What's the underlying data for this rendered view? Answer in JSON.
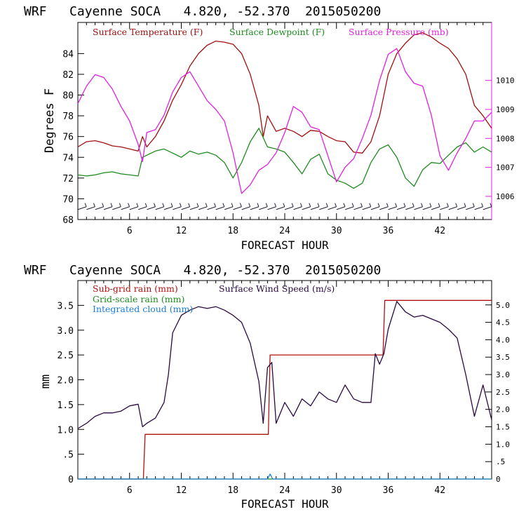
{
  "colors": {
    "temperature": "#a0100f",
    "dewpoint": "#1e8b1e",
    "pressure": "#e020e0",
    "subgrid_rain": "#b01010",
    "gridscale_rain": "#1e8b1e",
    "cloud": "#1a7fd0",
    "wind": "#2a0a40",
    "axis": "#000000"
  },
  "chart_data": [
    {
      "type": "line",
      "title": "WRF   Cayenne SOCA   4.820, -52.370  2015050200",
      "xlabel": "FORECAST HOUR",
      "ylabel": "Degrees F",
      "xlim": [
        0,
        48
      ],
      "xticks": [
        6,
        12,
        18,
        24,
        30,
        36,
        42
      ],
      "ylim": [
        68,
        87
      ],
      "yticks": [
        68,
        70,
        72,
        74,
        76,
        78,
        80,
        82,
        84
      ],
      "y2lim": [
        1005.2,
        1012.0
      ],
      "y2ticks": [
        1006,
        1007,
        1008,
        1009,
        1010
      ],
      "legend": [
        "Surface Temperature (F)",
        "Surface Dewpoint (F)",
        "Surface Pressure (mb)"
      ],
      "series": [
        {
          "name": "Surface Temperature (F)",
          "axis": "left",
          "x": [
            0,
            1,
            2,
            3,
            4,
            5,
            6,
            7,
            7.5,
            8,
            9,
            10,
            11,
            12,
            13,
            14,
            15,
            16,
            17,
            18,
            19,
            20,
            21,
            21.5,
            22,
            23,
            24,
            25,
            26,
            27,
            28,
            29,
            30,
            31,
            32,
            33,
            34,
            35,
            35.5,
            36,
            37,
            38,
            39,
            40,
            41,
            42,
            43,
            44,
            45,
            46,
            47,
            48
          ],
          "values": [
            75.0,
            75.5,
            75.6,
            75.4,
            75.1,
            75.0,
            74.8,
            74.6,
            76.0,
            75.0,
            76.0,
            77.5,
            79.5,
            81.0,
            82.8,
            84.0,
            84.8,
            85.2,
            85.1,
            84.9,
            84.0,
            82.0,
            79.0,
            76.0,
            78.0,
            76.5,
            76.8,
            76.5,
            76.0,
            76.6,
            76.5,
            76.0,
            75.6,
            75.5,
            74.5,
            74.4,
            75.5,
            78.0,
            80.0,
            82.0,
            84.0,
            85.0,
            85.8,
            86.0,
            85.6,
            85.0,
            84.5,
            83.5,
            82.0,
            79.0,
            78.0,
            76.8
          ]
        },
        {
          "name": "Surface Dewpoint (F)",
          "axis": "left",
          "x": [
            0,
            1,
            2,
            3,
            4,
            5,
            6,
            7,
            7.5,
            8,
            9,
            10,
            11,
            12,
            13,
            14,
            15,
            16,
            17,
            18,
            19,
            20,
            21,
            22,
            23,
            24,
            25,
            26,
            27,
            28,
            29,
            30,
            31,
            32,
            33,
            34,
            35,
            36,
            37,
            38,
            39,
            40,
            41,
            42,
            43,
            44,
            45,
            46,
            47,
            48
          ],
          "values": [
            72.3,
            72.2,
            72.3,
            72.5,
            72.6,
            72.4,
            72.3,
            72.2,
            74.0,
            74.2,
            74.6,
            74.8,
            74.4,
            74.0,
            74.6,
            74.3,
            74.5,
            74.2,
            73.5,
            72.0,
            73.5,
            75.5,
            76.8,
            75.0,
            74.8,
            74.5,
            73.5,
            72.4,
            73.8,
            74.3,
            72.4,
            71.8,
            71.5,
            71.0,
            71.5,
            73.5,
            74.8,
            75.2,
            74.0,
            72.0,
            71.2,
            72.8,
            73.5,
            73.4,
            74.2,
            75.0,
            75.4,
            74.5,
            75.0,
            74.5
          ]
        },
        {
          "name": "Surface Pressure (mb)",
          "axis": "right",
          "x": [
            0,
            1,
            2,
            3,
            4,
            5,
            6,
            7,
            7.5,
            8,
            9,
            10,
            11,
            12,
            13,
            14,
            15,
            16,
            17,
            18,
            19,
            20,
            21,
            22,
            23,
            24,
            25,
            26,
            27,
            28,
            29,
            30,
            31,
            32,
            33,
            34,
            35,
            36,
            37,
            38,
            39,
            40,
            41,
            42,
            43,
            44,
            45,
            46,
            47,
            48
          ],
          "values": [
            1009.2,
            1009.8,
            1010.2,
            1010.1,
            1009.7,
            1009.1,
            1008.6,
            1007.8,
            1007.2,
            1008.2,
            1008.3,
            1008.8,
            1009.6,
            1010.1,
            1010.3,
            1009.8,
            1009.3,
            1009.0,
            1008.6,
            1007.5,
            1006.1,
            1006.4,
            1006.9,
            1007.1,
            1007.5,
            1008.2,
            1009.1,
            1008.9,
            1008.4,
            1008.3,
            1007.4,
            1006.5,
            1007.0,
            1007.3,
            1008.0,
            1008.8,
            1010.0,
            1010.9,
            1011.1,
            1010.3,
            1009.9,
            1009.8,
            1008.8,
            1007.4,
            1006.9,
            1007.5,
            1008.0,
            1008.6,
            1008.6,
            1008.9
          ]
        }
      ]
    },
    {
      "type": "line",
      "title": "WRF   Cayenne SOCA   4.820, -52.370  2015050200",
      "xlabel": "FORECAST HOUR",
      "ylabel": "mm",
      "xlim": [
        0,
        48
      ],
      "xticks": [
        6,
        12,
        18,
        24,
        30,
        36,
        42
      ],
      "ylim": [
        0,
        4.0
      ],
      "yticks": [
        0,
        0.5,
        1.0,
        1.5,
        2.0,
        2.5,
        3.0,
        3.5
      ],
      "yticklabels": [
        "0",
        ".5",
        "1.0",
        "1.5",
        "2.0",
        "2.5",
        "3.0",
        "3.5"
      ],
      "y2lim": [
        0,
        5.7
      ],
      "y2ticks": [
        0,
        0.5,
        1.0,
        1.5,
        2.0,
        2.5,
        3.0,
        3.5,
        4.0,
        4.5,
        5.0
      ],
      "y2ticklabels": [
        "0",
        ".5",
        "1.0",
        "1.5",
        "2.0",
        "2.5",
        "3.0",
        "3.5",
        "4.0",
        "4.5",
        "5.0"
      ],
      "legend": [
        "Sub-grid rain (mm)",
        "Grid-scale rain (mm)",
        "Integrated cloud (mm)",
        "Surface Wind Speed (m/s)"
      ],
      "series": [
        {
          "name": "Sub-grid rain (mm)",
          "axis": "left",
          "step": true,
          "x": [
            0,
            7.6,
            7.8,
            22.1,
            22.3,
            35.4,
            35.6,
            48
          ],
          "values": [
            0,
            0,
            0.9,
            0.9,
            2.5,
            2.5,
            3.6,
            3.6
          ]
        },
        {
          "name": "Grid-scale rain (mm)",
          "axis": "left",
          "x": [
            0,
            48
          ],
          "values": [
            0,
            0
          ]
        },
        {
          "name": "Integrated cloud (mm)",
          "axis": "left",
          "x": [
            0,
            22.0,
            22.3,
            22.6,
            48
          ],
          "values": [
            0,
            0,
            0.1,
            0,
            0
          ]
        },
        {
          "name": "Surface Wind Speed (m/s)",
          "axis": "right",
          "x": [
            0,
            1,
            2,
            3,
            4,
            5,
            6,
            7,
            7.5,
            8,
            9,
            10,
            10.5,
            11,
            12,
            13,
            14,
            15,
            16,
            17,
            18,
            19,
            20,
            21,
            21.5,
            22,
            22.5,
            23,
            24,
            25,
            26,
            27,
            28,
            29,
            30,
            31,
            32,
            33,
            34,
            34.5,
            35,
            35.5,
            36,
            37,
            38,
            39,
            40,
            41,
            42,
            43,
            44,
            45,
            46,
            47,
            48
          ],
          "values": [
            1.45,
            1.6,
            1.8,
            1.9,
            1.9,
            1.95,
            2.1,
            2.15,
            1.5,
            1.6,
            1.75,
            2.2,
            3.0,
            4.2,
            4.7,
            4.85,
            4.95,
            4.9,
            4.95,
            4.85,
            4.7,
            4.5,
            3.9,
            2.8,
            1.6,
            3.2,
            3.35,
            1.6,
            2.2,
            1.8,
            2.3,
            2.1,
            2.5,
            2.3,
            2.2,
            2.7,
            2.3,
            2.2,
            2.2,
            3.6,
            3.3,
            3.6,
            4.3,
            5.1,
            4.8,
            4.65,
            4.7,
            4.6,
            4.5,
            4.3,
            4.05,
            3.0,
            1.8,
            2.7,
            1.7
          ]
        }
      ],
      "wind_barbs": [
        0,
        1,
        2,
        3,
        4,
        5,
        6,
        7,
        8,
        9,
        10,
        11,
        12,
        13,
        14,
        15,
        16,
        17,
        18,
        19,
        20,
        21,
        22,
        23,
        24,
        25,
        26,
        27,
        28,
        29,
        30,
        31,
        32,
        33,
        34,
        35,
        36,
        37,
        38,
        39,
        40,
        41,
        42,
        43,
        44,
        45,
        46,
        47
      ]
    }
  ]
}
